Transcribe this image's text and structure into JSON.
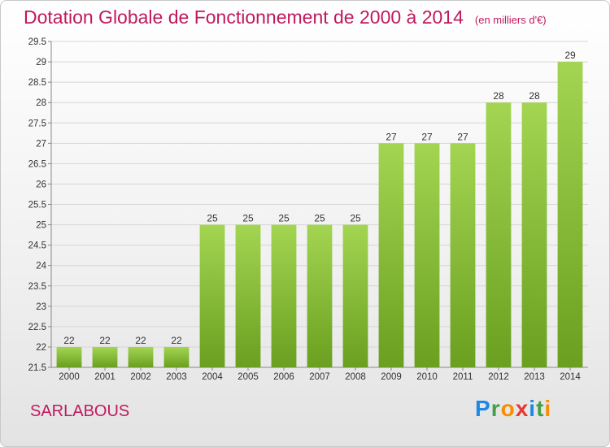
{
  "header": {
    "title": "Dotation Globale de Fonctionnement de 2000 à 2014",
    "unit": "(en milliers d'€)"
  },
  "footer": {
    "commune": "SARLABOUS",
    "brand": "Proxiti",
    "brand_letters": [
      {
        "ch": "P",
        "color": "#1e88e5"
      },
      {
        "ch": "r",
        "color": "#43a047"
      },
      {
        "ch": "o",
        "color": "#fb8c00"
      },
      {
        "ch": "x",
        "color": "#e53935"
      },
      {
        "ch": "i",
        "color": "#1e88e5"
      },
      {
        "ch": "t",
        "color": "#43a047"
      },
      {
        "ch": "i",
        "color": "#fb8c00"
      }
    ]
  },
  "colors": {
    "title": "#c0195e",
    "bar_light": "#a3d552",
    "bar_dark": "#6a9f1f",
    "grid": "#d6d6d6"
  },
  "chart_data": {
    "type": "bar",
    "title": "Dotation Globale de Fonctionnement de 2000 à 2014",
    "subtitle": "(en milliers d'€)",
    "xlabel": "",
    "ylabel": "",
    "categories": [
      "2000",
      "2001",
      "2002",
      "2003",
      "2004",
      "2005",
      "2006",
      "2007",
      "2008",
      "2009",
      "2010",
      "2011",
      "2012",
      "2013",
      "2014"
    ],
    "values": [
      22,
      22,
      22,
      22,
      25,
      25,
      25,
      25,
      25,
      27,
      27,
      27,
      28,
      28,
      29
    ],
    "ylim": [
      21.5,
      29.5
    ],
    "yticks": [
      "21.5",
      "22",
      "22.5",
      "23",
      "23.5",
      "24",
      "24.5",
      "25",
      "25.5",
      "26",
      "26.5",
      "27",
      "27.5",
      "28",
      "28.5",
      "29",
      "29.5"
    ],
    "grid": true,
    "legend": "none"
  }
}
